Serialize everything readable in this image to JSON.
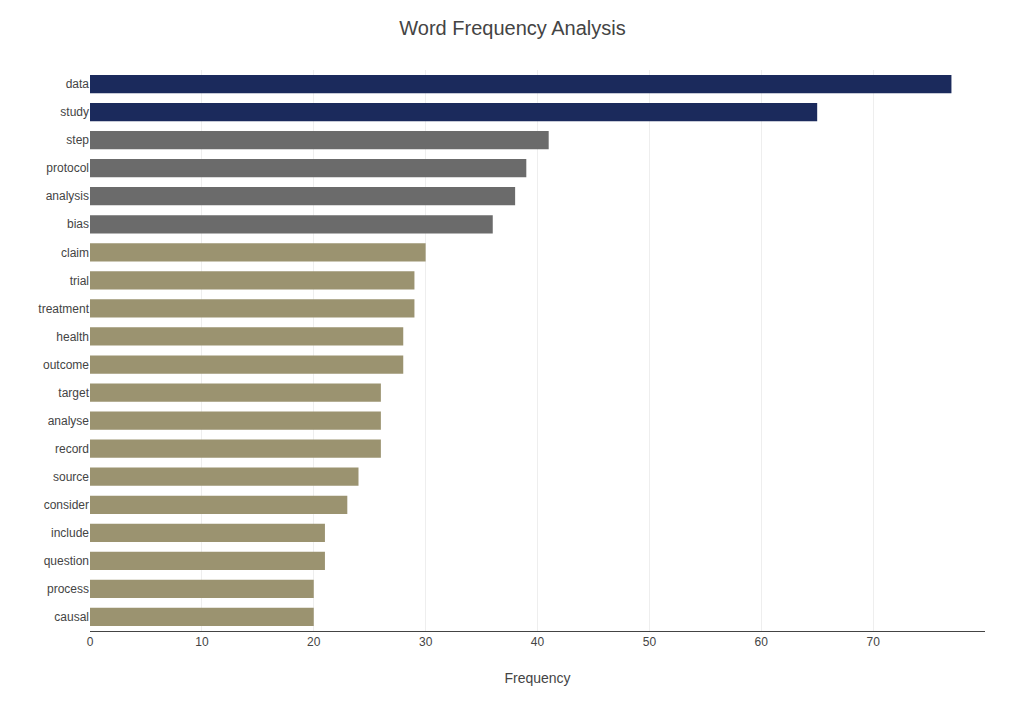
{
  "chart_data": {
    "type": "bar",
    "orientation": "horizontal",
    "title": "Word Frequency Analysis",
    "xlabel": "Frequency",
    "categories": [
      "data",
      "study",
      "step",
      "protocol",
      "analysis",
      "bias",
      "claim",
      "trial",
      "treatment",
      "health",
      "outcome",
      "target",
      "analyse",
      "record",
      "source",
      "consider",
      "include",
      "question",
      "process",
      "causal"
    ],
    "values": [
      77,
      65,
      41,
      39,
      38,
      36,
      30,
      29,
      29,
      28,
      28,
      26,
      26,
      26,
      24,
      23,
      21,
      21,
      20,
      20
    ],
    "colors": [
      "#1b2a5c",
      "#1b2a5c",
      "#6b6b6b",
      "#6b6b6b",
      "#6b6b6b",
      "#6b6b6b",
      "#9b9370",
      "#9b9370",
      "#9b9370",
      "#9b9370",
      "#9b9370",
      "#9b9370",
      "#9b9370",
      "#9b9370",
      "#9b9370",
      "#9b9370",
      "#9b9370",
      "#9b9370",
      "#9b9370",
      "#9b9370"
    ],
    "xlim": [
      0,
      80
    ],
    "xticks": [
      0,
      10,
      20,
      30,
      40,
      50,
      60,
      70
    ],
    "grid": true
  }
}
